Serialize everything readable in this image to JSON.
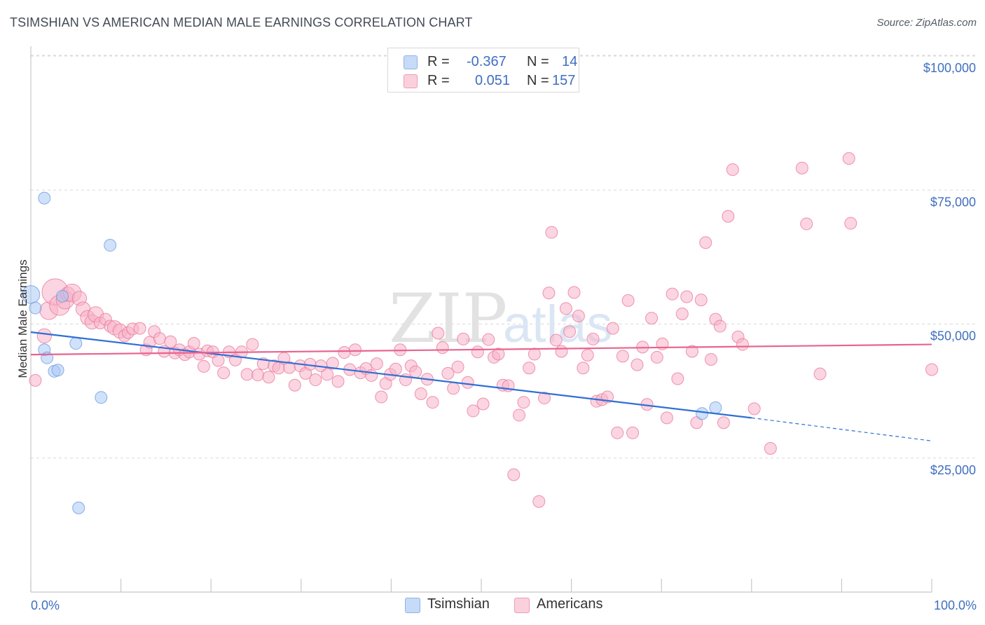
{
  "title": "TSIMSHIAN VS AMERICAN MEDIAN MALE EARNINGS CORRELATION CHART",
  "source": "Source: ZipAtlas.com",
  "legend": {
    "rows": [
      {
        "r_label": "R =",
        "r_value": "-0.367",
        "n_label": "N =",
        "n_value": "14",
        "color": "#aac8f5"
      },
      {
        "r_label": "R =",
        "r_value": "0.051",
        "n_label": "N =",
        "n_value": "157",
        "color": "#f7b3c8"
      }
    ]
  },
  "bottom_legend": [
    {
      "label": "Tsimshian",
      "color": "#aac8f5"
    },
    {
      "label": "Americans",
      "color": "#f7b3c8"
    }
  ],
  "chart_data": {
    "type": "scatter",
    "title": "TSIMSHIAN VS AMERICAN MEDIAN MALE EARNINGS CORRELATION CHART",
    "xlabel": "",
    "ylabel": "Median Male Earnings",
    "xlim": [
      0,
      100
    ],
    "ylim": [
      0,
      105000
    ],
    "x_tick_labels": [
      "0.0%",
      "100.0%"
    ],
    "y_ticks": [
      {
        "value": 25000,
        "label": "$25,000"
      },
      {
        "value": 50000,
        "label": "$50,000"
      },
      {
        "value": 75000,
        "label": "$75,000"
      },
      {
        "value": 100000,
        "label": "$100,000"
      }
    ],
    "watermark": "ZIPatlas",
    "series": [
      {
        "name": "Tsimshian",
        "color": "#6f9be0",
        "fill": "#aac8f5",
        "trend": {
          "x0": 0,
          "y0": 48500,
          "x1": 80,
          "y1": 32500,
          "dash_to_x": 100,
          "dash_to_y": 28200
        },
        "points": [
          [
            0.0,
            55500,
            1.5
          ],
          [
            0.5,
            53000,
            1
          ],
          [
            1.5,
            73500,
            1
          ],
          [
            1.5,
            45200,
            1
          ],
          [
            1.8,
            43700,
            1
          ],
          [
            2.6,
            41200,
            1
          ],
          [
            3.0,
            41400,
            1
          ],
          [
            3.5,
            55200,
            1
          ],
          [
            5.0,
            46400,
            1
          ],
          [
            5.3,
            15700,
            1
          ],
          [
            7.8,
            36300,
            1
          ],
          [
            8.8,
            64700,
            1
          ],
          [
            74.5,
            33300,
            1
          ],
          [
            76.0,
            34400,
            1
          ]
        ]
      },
      {
        "name": "Americans",
        "color": "#ea7b9c",
        "fill": "#f7b3c8",
        "trend": {
          "x0": 0,
          "y0": 44300,
          "x1": 100,
          "y1": 46200
        },
        "points": [
          [
            0.5,
            39500,
            1
          ],
          [
            1.5,
            47800,
            1.2
          ],
          [
            2.0,
            52500,
            1.5
          ],
          [
            2.7,
            56000,
            2.2
          ],
          [
            3.2,
            53500,
            1.7
          ],
          [
            3.8,
            54500,
            1.5
          ],
          [
            4.1,
            55600,
            1.2
          ],
          [
            4.6,
            55800,
            1.5
          ],
          [
            5.4,
            54800,
            1.2
          ],
          [
            5.8,
            52800,
            1.2
          ],
          [
            6.3,
            51200,
            1.2
          ],
          [
            6.8,
            50400,
            1.2
          ],
          [
            7.2,
            51800,
            1.3
          ],
          [
            7.7,
            50200,
            1
          ],
          [
            8.3,
            50900,
            1
          ],
          [
            8.8,
            49600,
            1
          ],
          [
            9.3,
            49300,
            1.2
          ],
          [
            9.9,
            48700,
            1.2
          ],
          [
            10.4,
            47800,
            1
          ],
          [
            10.8,
            48400,
            1
          ],
          [
            11.3,
            49100,
            1
          ],
          [
            12.1,
            49200,
            1
          ],
          [
            12.8,
            45200,
            1
          ],
          [
            13.2,
            46600,
            1
          ],
          [
            13.7,
            48600,
            1
          ],
          [
            14.3,
            47300,
            1
          ],
          [
            14.8,
            44900,
            1
          ],
          [
            15.5,
            46700,
            1
          ],
          [
            16.0,
            44600,
            1
          ],
          [
            16.5,
            45200,
            1
          ],
          [
            17.1,
            44300,
            1
          ],
          [
            17.6,
            44800,
            1
          ],
          [
            18.1,
            46400,
            1
          ],
          [
            18.7,
            44400,
            1
          ],
          [
            19.2,
            42100,
            1
          ],
          [
            19.6,
            45000,
            1
          ],
          [
            20.2,
            44800,
            1
          ],
          [
            20.8,
            43200,
            1
          ],
          [
            21.4,
            40900,
            1
          ],
          [
            22.0,
            44800,
            1
          ],
          [
            22.7,
            43300,
            1
          ],
          [
            23.4,
            44800,
            1
          ],
          [
            24.0,
            40600,
            1
          ],
          [
            24.6,
            46200,
            1
          ],
          [
            25.2,
            40500,
            1
          ],
          [
            25.8,
            42600,
            1
          ],
          [
            26.4,
            40100,
            1
          ],
          [
            27.0,
            42200,
            1
          ],
          [
            27.5,
            41800,
            1
          ],
          [
            28.1,
            43600,
            1
          ],
          [
            28.7,
            41900,
            1
          ],
          [
            29.3,
            38600,
            1
          ],
          [
            29.9,
            42200,
            1
          ],
          [
            30.5,
            40800,
            1
          ],
          [
            31.0,
            42500,
            1
          ],
          [
            31.6,
            39600,
            1
          ],
          [
            32.2,
            42200,
            1
          ],
          [
            32.9,
            40600,
            1
          ],
          [
            33.5,
            42700,
            1
          ],
          [
            34.1,
            39300,
            1
          ],
          [
            34.8,
            44700,
            1
          ],
          [
            35.4,
            41500,
            1
          ],
          [
            36.0,
            45200,
            1
          ],
          [
            36.6,
            40900,
            1
          ],
          [
            37.2,
            41700,
            1
          ],
          [
            37.8,
            40400,
            1
          ],
          [
            38.4,
            42600,
            1
          ],
          [
            38.9,
            36400,
            1
          ],
          [
            39.4,
            38900,
            1
          ],
          [
            39.9,
            40600,
            1
          ],
          [
            40.5,
            41600,
            1
          ],
          [
            41.0,
            45200,
            1
          ],
          [
            41.6,
            39600,
            1
          ],
          [
            42.2,
            42200,
            1
          ],
          [
            42.7,
            41100,
            1
          ],
          [
            43.3,
            37000,
            1
          ],
          [
            44.0,
            39700,
            1
          ],
          [
            44.6,
            35400,
            1
          ],
          [
            45.2,
            48300,
            1
          ],
          [
            45.7,
            45600,
            1
          ],
          [
            46.3,
            40800,
            1
          ],
          [
            46.9,
            38000,
            1
          ],
          [
            47.4,
            42000,
            1
          ],
          [
            48.0,
            47200,
            1
          ],
          [
            48.5,
            39100,
            1
          ],
          [
            49.1,
            33800,
            1
          ],
          [
            49.6,
            44800,
            1
          ],
          [
            50.2,
            35100,
            1
          ],
          [
            50.8,
            47100,
            1
          ],
          [
            51.4,
            43800,
            1
          ],
          [
            51.9,
            44400,
            1
          ],
          [
            52.4,
            38600,
            1
          ],
          [
            53.0,
            38500,
            1
          ],
          [
            53.6,
            21900,
            1
          ],
          [
            54.2,
            33000,
            1
          ],
          [
            54.7,
            35400,
            1
          ],
          [
            55.3,
            41800,
            1
          ],
          [
            55.9,
            44400,
            1
          ],
          [
            56.4,
            16900,
            1
          ],
          [
            57.0,
            36200,
            1
          ],
          [
            57.5,
            55800,
            1
          ],
          [
            57.8,
            67100,
            1
          ],
          [
            58.3,
            47000,
            1
          ],
          [
            58.9,
            44900,
            1
          ],
          [
            59.4,
            52900,
            1
          ],
          [
            59.8,
            48600,
            1
          ],
          [
            60.3,
            55900,
            1
          ],
          [
            60.8,
            51500,
            1
          ],
          [
            61.3,
            41800,
            1
          ],
          [
            61.8,
            44200,
            1
          ],
          [
            62.4,
            47200,
            1
          ],
          [
            62.8,
            35600,
            1
          ],
          [
            63.4,
            35900,
            1
          ],
          [
            64.0,
            36400,
            1
          ],
          [
            64.6,
            49200,
            1
          ],
          [
            65.1,
            29700,
            1
          ],
          [
            65.7,
            44000,
            1
          ],
          [
            66.3,
            54400,
            1
          ],
          [
            66.8,
            29700,
            1
          ],
          [
            67.3,
            42400,
            1
          ],
          [
            67.9,
            45700,
            1
          ],
          [
            68.4,
            35000,
            1
          ],
          [
            68.9,
            51100,
            1
          ],
          [
            69.5,
            43800,
            1
          ],
          [
            70.1,
            46300,
            1
          ],
          [
            70.6,
            32500,
            1
          ],
          [
            71.2,
            55600,
            1
          ],
          [
            71.8,
            39800,
            1
          ],
          [
            72.3,
            51900,
            1
          ],
          [
            72.8,
            55100,
            1
          ],
          [
            73.4,
            44900,
            1
          ],
          [
            73.9,
            31600,
            1
          ],
          [
            74.4,
            54500,
            1
          ],
          [
            74.9,
            65200,
            1
          ],
          [
            75.5,
            43400,
            1
          ],
          [
            76.0,
            50900,
            1
          ],
          [
            76.5,
            49600,
            1
          ],
          [
            76.9,
            31600,
            1
          ],
          [
            77.4,
            70100,
            1
          ],
          [
            77.9,
            78800,
            1
          ],
          [
            78.5,
            47600,
            1
          ],
          [
            79.0,
            46200,
            1
          ],
          [
            80.3,
            34200,
            1
          ],
          [
            82.1,
            26800,
            1
          ],
          [
            85.6,
            79100,
            1
          ],
          [
            86.1,
            68700,
            1
          ],
          [
            87.6,
            40700,
            1
          ],
          [
            90.8,
            80900,
            1
          ],
          [
            91.0,
            68800,
            1
          ],
          [
            100.0,
            41500,
            1
          ]
        ]
      }
    ]
  }
}
